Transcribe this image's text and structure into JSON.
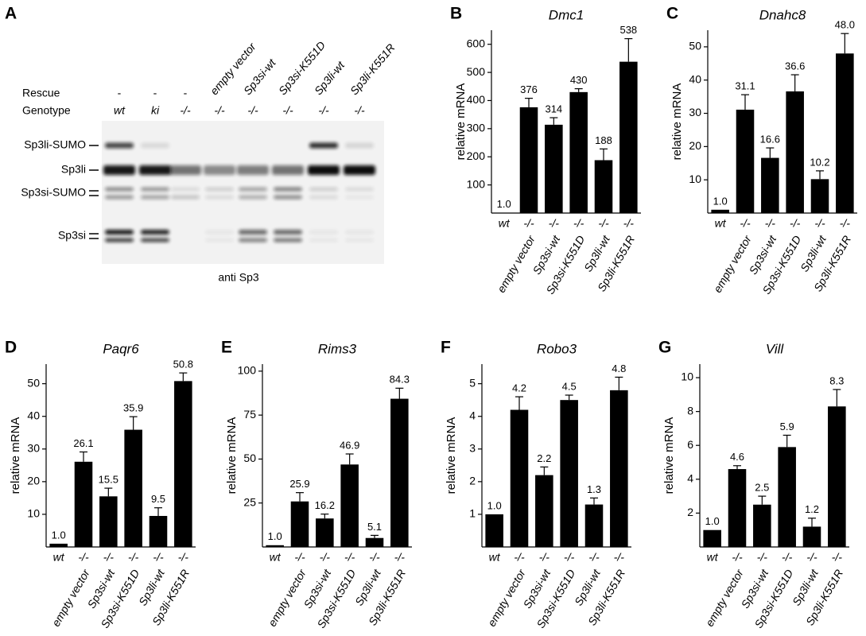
{
  "blot": {
    "panel": "A",
    "rescue_title": "Rescue",
    "genotype_title": "Genotype",
    "lanes": [
      {
        "rescue": "-",
        "genotype": "wt"
      },
      {
        "rescue": "-",
        "genotype": "ki"
      },
      {
        "rescue": "-",
        "genotype": "-/-"
      },
      {
        "rescue": "empty vector",
        "genotype": "-/-"
      },
      {
        "rescue": "Sp3si-wt",
        "genotype": "-/-"
      },
      {
        "rescue": "Sp3si-K551D",
        "genotype": "-/-"
      },
      {
        "rescue": "Sp3li-wt",
        "genotype": "-/-"
      },
      {
        "rescue": "Sp3li-K551R",
        "genotype": "-/-"
      }
    ],
    "bands": [
      "Sp3li-SUMO",
      "Sp3li",
      "Sp3si-SUMO",
      "Sp3si"
    ],
    "antibody": "anti Sp3"
  },
  "chart_data": [
    {
      "type": "bar",
      "panel": "B",
      "title": "Dmc1",
      "y_label": "relative mRNA",
      "categories": [
        "wt",
        "-/-",
        "-/-",
        "-/-",
        "-/-",
        "-/-"
      ],
      "category_labels": [
        null,
        "empty vector",
        "Sp3si-wt",
        "Sp3si-K551D",
        "Sp3li-wt",
        "Sp3li-K551R"
      ],
      "ylim": [
        0,
        650
      ],
      "yticks": [
        100,
        200,
        300,
        400,
        500,
        600
      ],
      "series": [
        {
          "color": "#000000",
          "values": [
            1,
            376,
            314,
            430,
            188,
            538
          ],
          "errors": [
            null,
            32,
            25,
            12,
            40,
            82
          ],
          "value_labels": [
            "1.0",
            "376",
            "314",
            "430",
            "188",
            "538"
          ]
        }
      ]
    },
    {
      "type": "bar",
      "panel": "C",
      "title": "Dnahc8",
      "y_label": "relative mRNA",
      "categories": [
        "wt",
        "-/-",
        "-/-",
        "-/-",
        "-/-",
        "-/-"
      ],
      "category_labels": [
        null,
        "empty vector",
        "Sp3si-wt",
        "Sp3si-K551D",
        "Sp3li-wt",
        "Sp3li-K551R"
      ],
      "ylim": [
        0,
        55
      ],
      "yticks": [
        10,
        20,
        30,
        40,
        50
      ],
      "series": [
        {
          "color": "#000000",
          "values": [
            1,
            31.1,
            16.6,
            36.6,
            10.2,
            48
          ],
          "errors": [
            null,
            4.5,
            3,
            5,
            2.5,
            6
          ],
          "value_labels": [
            "1.0",
            "31.1",
            "16.6",
            "36.6",
            "10.2",
            "48.0"
          ]
        }
      ]
    },
    {
      "type": "bar",
      "panel": "D",
      "title": "Paqr6",
      "y_label": "relative mRNA",
      "categories": [
        "wt",
        "-/-",
        "-/-",
        "-/-",
        "-/-",
        "-/-"
      ],
      "category_labels": [
        null,
        "empty vector",
        "Sp3si-wt",
        "Sp3si-K551D",
        "Sp3li-wt",
        "Sp3li-K551R"
      ],
      "ylim": [
        0,
        56
      ],
      "yticks": [
        10,
        20,
        30,
        40,
        50
      ],
      "series": [
        {
          "color": "#000000",
          "values": [
            1,
            26.1,
            15.5,
            35.9,
            9.5,
            50.8
          ],
          "errors": [
            null,
            3,
            2.5,
            4,
            2.5,
            2.5
          ],
          "value_labels": [
            "1.0",
            "26.1",
            "15.5",
            "35.9",
            "9.5",
            "50.8"
          ]
        }
      ]
    },
    {
      "type": "bar",
      "panel": "E",
      "title": "Rims3",
      "y_label": "relative mRNA",
      "categories": [
        "wt",
        "-/-",
        "-/-",
        "-/-",
        "-/-",
        "-/-"
      ],
      "category_labels": [
        null,
        "empty vector",
        "Sp3si-wt",
        "Sp3si-K551D",
        "Sp3li-wt",
        "Sp3li-K551R"
      ],
      "ylim": [
        0,
        104
      ],
      "yticks": [
        25,
        50,
        75,
        100
      ],
      "series": [
        {
          "color": "#000000",
          "values": [
            1,
            25.9,
            16.2,
            46.9,
            5.1,
            84.3
          ],
          "errors": [
            null,
            5,
            2.5,
            6,
            1.5,
            6
          ],
          "value_labels": [
            "1.0",
            "25.9",
            "16.2",
            "46.9",
            "5.1",
            "84.3"
          ]
        }
      ]
    },
    {
      "type": "bar",
      "panel": "F",
      "title": "Robo3",
      "y_label": "relative mRNA",
      "categories": [
        "wt",
        "-/-",
        "-/-",
        "-/-",
        "-/-",
        "-/-"
      ],
      "category_labels": [
        null,
        "empty vector",
        "Sp3si-wt",
        "Sp3si-K551D",
        "Sp3li-wt",
        "Sp3li-K551R"
      ],
      "ylim": [
        0,
        5.6
      ],
      "yticks": [
        1,
        2,
        3,
        4,
        5
      ],
      "series": [
        {
          "color": "#000000",
          "values": [
            1,
            4.2,
            2.2,
            4.5,
            1.3,
            4.8
          ],
          "errors": [
            null,
            0.4,
            0.25,
            0.15,
            0.2,
            0.4
          ],
          "value_labels": [
            "1.0",
            "4.2",
            "2.2",
            "4.5",
            "1.3",
            "4.8"
          ]
        }
      ]
    },
    {
      "type": "bar",
      "panel": "G",
      "title": "Vill",
      "y_label": "relative mRNA",
      "categories": [
        "wt",
        "-/-",
        "-/-",
        "-/-",
        "-/-",
        "-/-"
      ],
      "category_labels": [
        null,
        "empty vector",
        "Sp3si-wt",
        "Sp3si-K551D",
        "Sp3li-wt",
        "Sp3li-K551R"
      ],
      "ylim": [
        0,
        10.8
      ],
      "yticks": [
        2,
        4,
        6,
        8,
        10
      ],
      "series": [
        {
          "color": "#000000",
          "values": [
            1,
            4.6,
            2.5,
            5.9,
            1.2,
            8.3
          ],
          "errors": [
            null,
            0.2,
            0.5,
            0.7,
            0.5,
            1.0
          ],
          "value_labels": [
            "1.0",
            "4.6",
            "2.5",
            "5.9",
            "1.2",
            "8.3"
          ]
        }
      ]
    }
  ]
}
